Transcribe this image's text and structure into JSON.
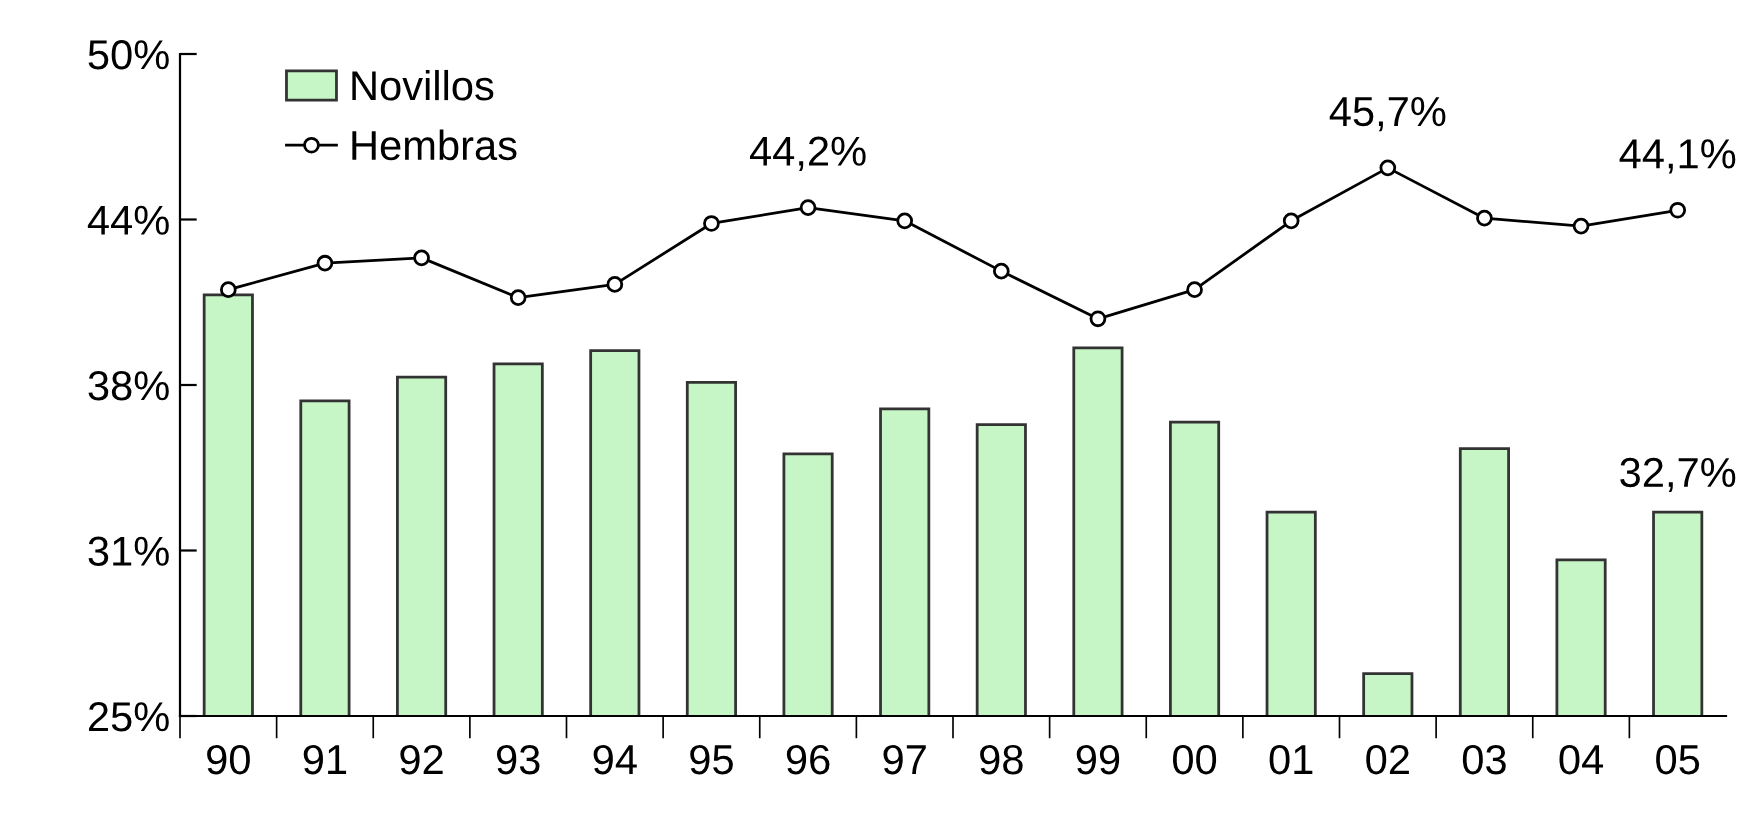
{
  "chart_data": {
    "type": "bar",
    "categories": [
      "90",
      "91",
      "92",
      "93",
      "94",
      "95",
      "96",
      "97",
      "98",
      "99",
      "00",
      "01",
      "02",
      "03",
      "04",
      "05"
    ],
    "series": [
      {
        "name": "Novillos",
        "color": "#c6f5c6",
        "values": [
          40.9,
          36.9,
          37.8,
          38.3,
          38.8,
          37.6,
          34.9,
          36.6,
          36.0,
          38.9,
          36.1,
          32.7,
          26.6,
          35.1,
          30.9,
          32.7
        ],
        "value_labels": [
          null,
          null,
          null,
          null,
          null,
          null,
          null,
          null,
          null,
          null,
          null,
          null,
          null,
          null,
          null,
          "32,7%"
        ]
      },
      {
        "name": "Hembras",
        "type": "line",
        "color": "#000000",
        "marker": "circle",
        "values": [
          41.1,
          42.1,
          42.3,
          40.8,
          41.3,
          43.6,
          44.2,
          43.7,
          41.8,
          40.0,
          41.1,
          43.7,
          45.7,
          43.8,
          43.5,
          44.1
        ],
        "value_labels": [
          null,
          null,
          null,
          null,
          null,
          null,
          "44,2%",
          null,
          null,
          null,
          null,
          null,
          "45,7%",
          null,
          null,
          "44,1%"
        ]
      }
    ],
    "ylim": [
      25,
      50
    ],
    "yticks": [
      {
        "value": 25,
        "label": "25%"
      },
      {
        "value": 31.25,
        "label": "31%"
      },
      {
        "value": 37.5,
        "label": "38%"
      },
      {
        "value": 43.75,
        "label": "44%"
      },
      {
        "value": 50,
        "label": "50%"
      }
    ],
    "grid": false,
    "legend": "top left"
  }
}
